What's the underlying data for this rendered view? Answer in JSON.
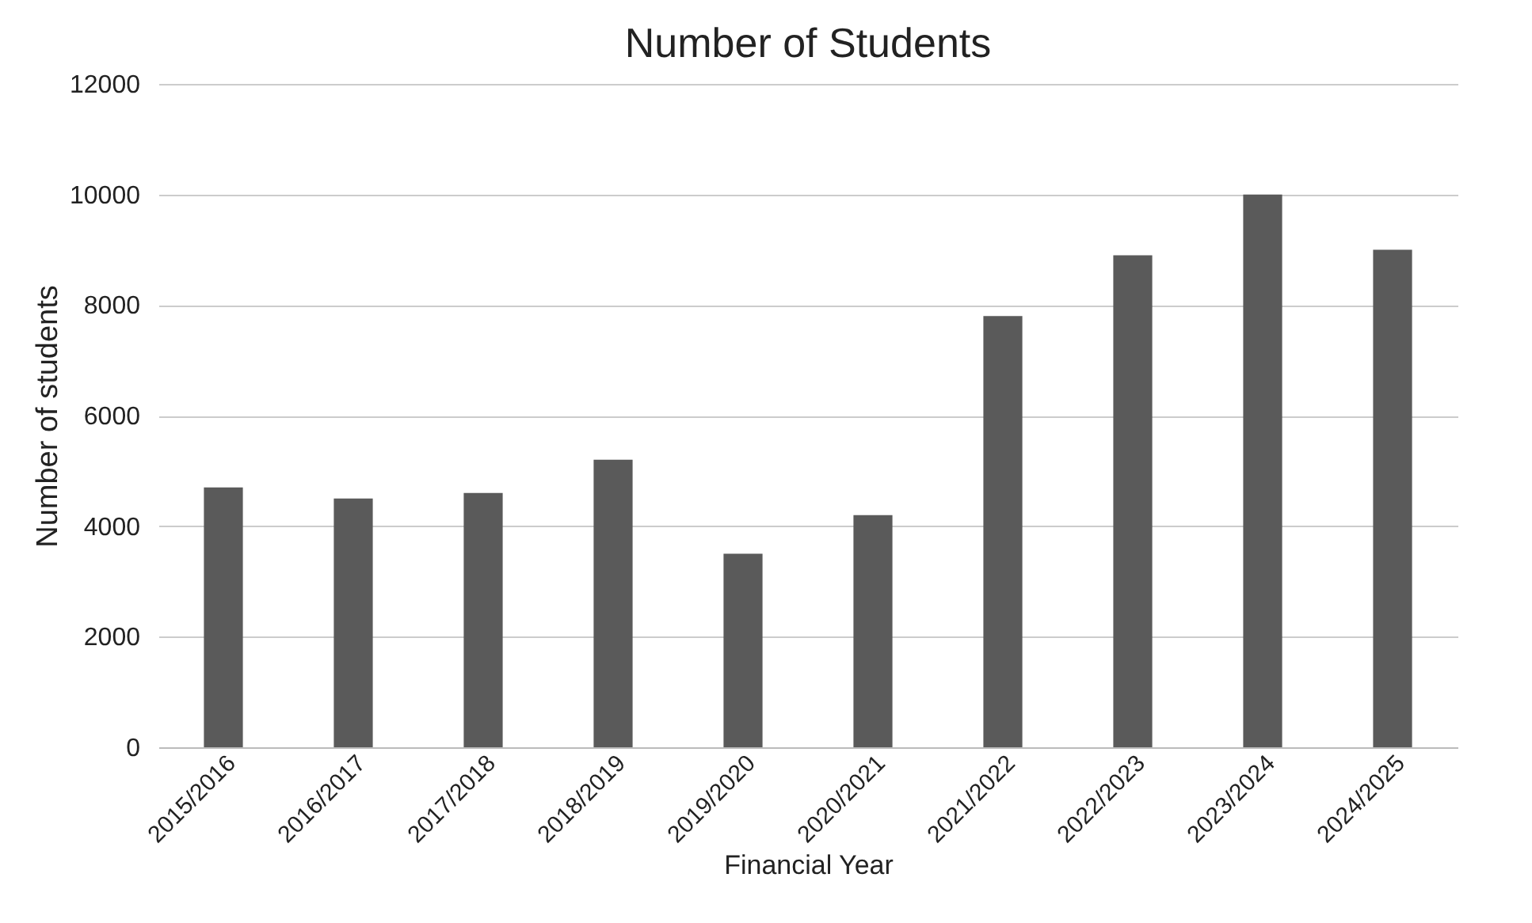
{
  "chart_data": {
    "type": "bar",
    "title": "Number of Students",
    "xlabel": "Financial Year",
    "ylabel": "Number of students",
    "categories": [
      "2015/2016",
      "2016/2017",
      "2017/2018",
      "2018/2019",
      "2019/2020",
      "2020/2021",
      "2021/2022",
      "2022/2023",
      "2023/2024",
      "2024/2025"
    ],
    "values": [
      4700,
      4500,
      4600,
      5200,
      3500,
      4200,
      7800,
      8900,
      10000,
      9000
    ],
    "color": "#5a5a5a",
    "ylim": [
      0,
      12000
    ],
    "yticks": [
      0,
      2000,
      4000,
      6000,
      8000,
      10000,
      12000
    ],
    "grid": "y"
  }
}
